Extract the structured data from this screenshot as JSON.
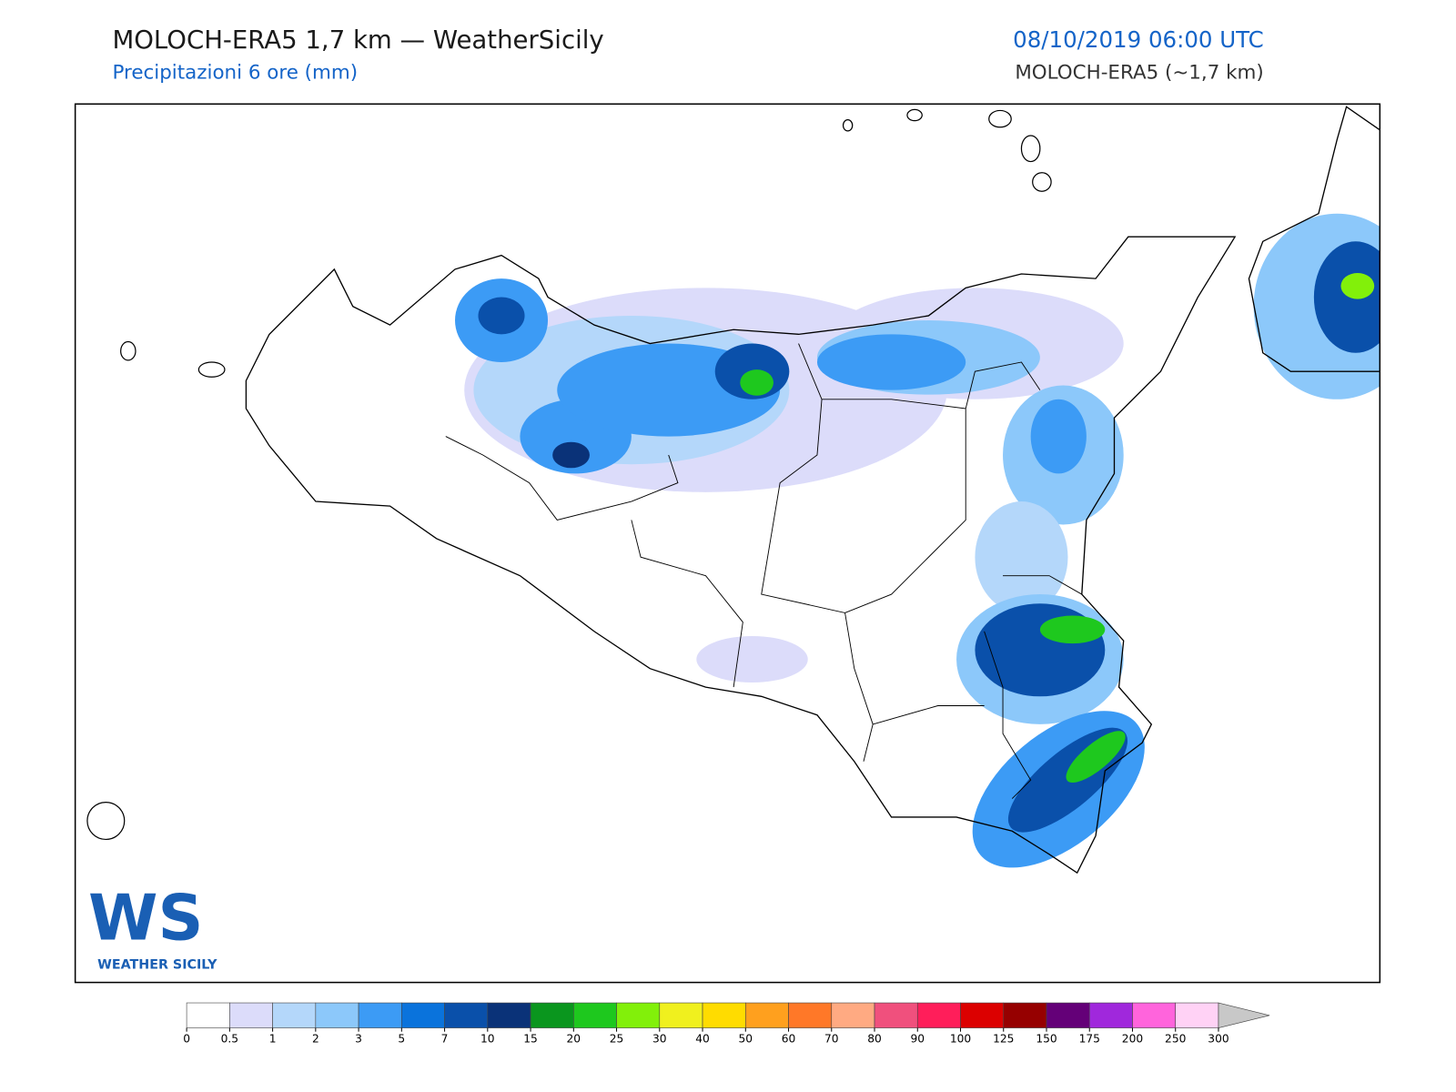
{
  "header": {
    "title": "MOLOCH-ERA5 1,7 km — WeatherSicily",
    "subtitle": "Precipitazioni 6 ore (mm)",
    "datetime": "08/10/2019 06:00 UTC",
    "model": "MOLOCH-ERA5 (~1,7 km)"
  },
  "logo": {
    "mark": "WS",
    "text": "WEATHER SICILY"
  },
  "colorbar": {
    "levels": [
      0,
      0.5,
      1,
      2,
      3,
      5,
      7,
      10,
      15,
      20,
      25,
      30,
      40,
      50,
      60,
      70,
      80,
      90,
      100,
      125,
      150,
      175,
      200,
      250,
      300
    ],
    "colors": [
      "#ffffff",
      "#dcdcfa",
      "#b4d7fa",
      "#8cc8fa",
      "#3c9bf5",
      "#0a73dc",
      "#0a50aa",
      "#0a3278",
      "#0a961e",
      "#1ec81e",
      "#82f00a",
      "#f0f01e",
      "#ffdc00",
      "#ffa01e",
      "#ff7828",
      "#ffaa82",
      "#f0507d",
      "#ff1e5a",
      "#dc0000",
      "#960000",
      "#640078",
      "#a028dc",
      "#ff64dc",
      "#ffd2f5"
    ],
    "extend_color": "#c8c8c8"
  }
}
